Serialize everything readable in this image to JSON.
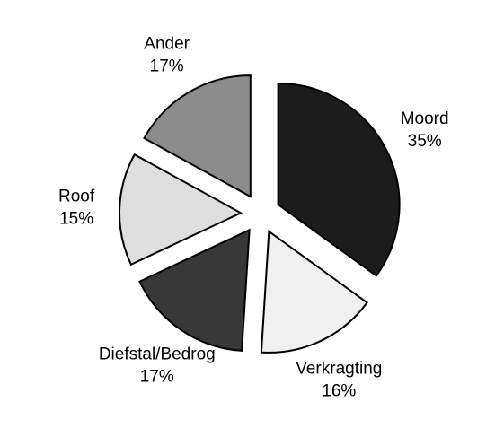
{
  "chart_data": {
    "type": "pie",
    "categories": [
      "Moord",
      "Verkragting",
      "Diefstal/Bedrog",
      "Roof",
      "Ander"
    ],
    "values": [
      35,
      16,
      17,
      15,
      17
    ],
    "value_labels": [
      "35%",
      "16%",
      "17%",
      "15%",
      "17%"
    ],
    "colors": [
      "#1c1c1c",
      "#f0f0f0",
      "#383838",
      "#dedede",
      "#8c8c8c"
    ]
  }
}
